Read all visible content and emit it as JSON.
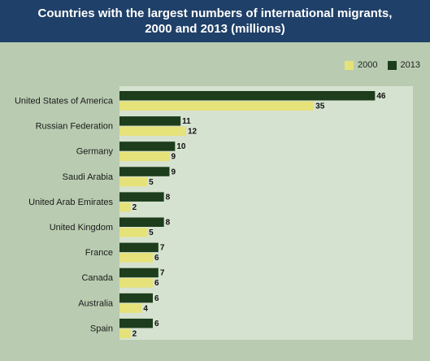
{
  "title": {
    "line1": "Countries with the largest numbers of international migrants,",
    "line2": "2000 and 2013 (millions)"
  },
  "colors": {
    "s2000": "#e6e27a",
    "s2013": "#1d3d1d"
  },
  "chart_data": {
    "type": "bar",
    "orientation": "horizontal",
    "title": "Countries with the largest numbers of international migrants, 2000 and 2013 (millions)",
    "categories": [
      "United States of America",
      "Russian Federation",
      "Germany",
      "Saudi Arabia",
      "United Arab Emirates",
      "United Kingdom",
      "France",
      "Canada",
      "Australia",
      "Spain"
    ],
    "series": [
      {
        "name": "2000",
        "values": [
          35,
          12,
          9,
          5,
          2,
          5,
          6,
          6,
          4,
          2
        ]
      },
      {
        "name": "2013",
        "values": [
          46,
          11,
          10,
          9,
          8,
          8,
          7,
          7,
          6,
          6
        ]
      }
    ],
    "xlabel": "",
    "ylabel": "",
    "xlim": [
      0,
      48
    ],
    "grid": false,
    "legend_position": "top-right"
  }
}
